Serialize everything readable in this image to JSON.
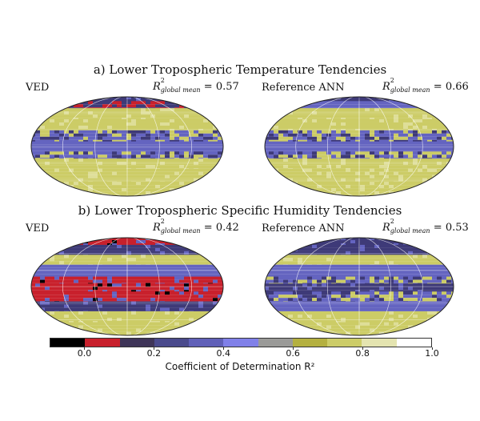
{
  "chart_data": [
    {
      "type": "heatmap",
      "title": "a) Lower Tropospheric Temperature Tendencies",
      "panels": [
        {
          "label": "VED",
          "r2_text": "R",
          "r2_sup": "2",
          "r2_sub": "global mean",
          "r2_value": "= 0.57",
          "bands": [
            [
              0.05,
              "navy"
            ],
            [
              0.12,
              "mix_red"
            ],
            [
              0.23,
              "yellow"
            ],
            [
              0.34,
              "yellow"
            ],
            [
              0.45,
              "mixed"
            ],
            [
              0.55,
              "blue"
            ],
            [
              0.62,
              "mixed"
            ],
            [
              0.72,
              "yellow"
            ],
            [
              0.85,
              "yellow"
            ],
            [
              1.0,
              "yellow"
            ]
          ]
        },
        {
          "label": "Reference ANN",
          "r2_text": "R",
          "r2_sup": "2",
          "r2_sub": "global mean",
          "r2_value": "= 0.66",
          "bands": [
            [
              0.05,
              "navy"
            ],
            [
              0.12,
              "blue"
            ],
            [
              0.23,
              "yellow"
            ],
            [
              0.34,
              "yellow"
            ],
            [
              0.45,
              "mixed"
            ],
            [
              0.55,
              "blue"
            ],
            [
              0.62,
              "mixed"
            ],
            [
              0.72,
              "yellow"
            ],
            [
              0.85,
              "yellow"
            ],
            [
              1.0,
              "yellow"
            ]
          ]
        }
      ]
    },
    {
      "type": "heatmap",
      "title": "b) Lower Tropospheric Specific Humidity Tendencies",
      "panels": [
        {
          "label": "VED",
          "r2_text": "R",
          "r2_sup": "2",
          "r2_sub": "global mean",
          "r2_value": "= 0.42",
          "bands": [
            [
              0.08,
              "red"
            ],
            [
              0.18,
              "navy"
            ],
            [
              0.28,
              "yellow"
            ],
            [
              0.4,
              "blue"
            ],
            [
              0.47,
              "red"
            ],
            [
              0.55,
              "red"
            ],
            [
              0.65,
              "red"
            ],
            [
              0.75,
              "navy"
            ],
            [
              0.86,
              "yellow"
            ],
            [
              1.0,
              "yellow"
            ]
          ]
        },
        {
          "label": "Reference ANN",
          "r2_text": "R",
          "r2_sup": "2",
          "r2_sub": "global mean",
          "r2_value": "= 0.53",
          "bands": [
            [
              0.08,
              "navy"
            ],
            [
              0.18,
              "navy"
            ],
            [
              0.28,
              "yellow"
            ],
            [
              0.4,
              "blue"
            ],
            [
              0.47,
              "mixed"
            ],
            [
              0.55,
              "navy"
            ],
            [
              0.65,
              "mixed"
            ],
            [
              0.75,
              "blue"
            ],
            [
              0.86,
              "yellow"
            ],
            [
              1.0,
              "yellow"
            ]
          ]
        }
      ]
    }
  ],
  "colorbar": {
    "label": "Coefficient of Determination R²",
    "colors": [
      "#000000",
      "#c8202c",
      "#3e3458",
      "#4a4a8c",
      "#6060b8",
      "#8080e8",
      "#9a9a98",
      "#b4b040",
      "#cccc68",
      "#e4e4b0",
      "#ffffff"
    ],
    "ticks": [
      "0.0",
      "0.2",
      "0.4",
      "0.6",
      "0.8",
      "1.0"
    ],
    "tick_values": [
      0.0,
      0.2,
      0.4,
      0.6,
      0.8,
      1.0
    ],
    "range": [
      -0.1,
      1.0
    ]
  },
  "palette": {
    "navy": "#3e3a78",
    "blue": "#6464c0",
    "yellow": "#cccc66",
    "red": "#c8202c",
    "mixed": "#8a88b0",
    "mix_red": "#9a3060"
  }
}
